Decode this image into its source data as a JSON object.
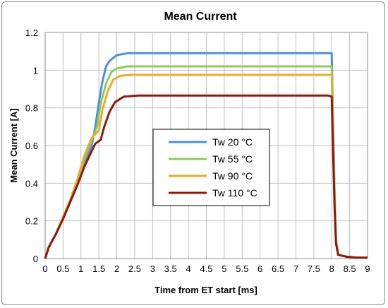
{
  "chart_data": {
    "type": "line",
    "title": "Mean Current",
    "xlabel": "Time from ET start [ms]",
    "ylabel": "Mean Current [A]",
    "xlim": [
      0,
      9
    ],
    "ylim": [
      0,
      1.2
    ],
    "x_ticks": [
      "0",
      "0.5",
      "1",
      "1.5",
      "2",
      "2.5",
      "3",
      "3.5",
      "4",
      "4.5",
      "5",
      "5.5",
      "6",
      "6.5",
      "7",
      "7.5",
      "8",
      "8.5",
      "9"
    ],
    "y_ticks": [
      "0",
      "0.2",
      "0.4",
      "0.6",
      "0.8",
      "1",
      "1.2"
    ],
    "grid": true,
    "legend_position": "center",
    "series": [
      {
        "name": "Tw 20 °C",
        "color": "#4a90e2",
        "points": [
          [
            0,
            0.0
          ],
          [
            0.1,
            0.06
          ],
          [
            0.3,
            0.13
          ],
          [
            0.5,
            0.22
          ],
          [
            0.7,
            0.31
          ],
          [
            0.9,
            0.41
          ],
          [
            1.1,
            0.51
          ],
          [
            1.3,
            0.6
          ],
          [
            1.4,
            0.7
          ],
          [
            1.5,
            0.83
          ],
          [
            1.6,
            0.94
          ],
          [
            1.7,
            1.02
          ],
          [
            1.8,
            1.05
          ],
          [
            2.0,
            1.08
          ],
          [
            2.3,
            1.09
          ],
          [
            3,
            1.09
          ],
          [
            4,
            1.09
          ],
          [
            5,
            1.09
          ],
          [
            6,
            1.09
          ],
          [
            7,
            1.09
          ],
          [
            8,
            1.09
          ],
          [
            8.02,
            0.9
          ],
          [
            8.08,
            0.35
          ],
          [
            8.12,
            0.1
          ],
          [
            8.18,
            0.02
          ],
          [
            8.4,
            0.01
          ],
          [
            8.7,
            0.005
          ],
          [
            9.0,
            0.005
          ]
        ]
      },
      {
        "name": "Tw 55 °C",
        "color": "#8fc95c",
        "points": [
          [
            0,
            0.0
          ],
          [
            0.1,
            0.06
          ],
          [
            0.3,
            0.13
          ],
          [
            0.5,
            0.22
          ],
          [
            0.7,
            0.31
          ],
          [
            0.9,
            0.41
          ],
          [
            1.1,
            0.53
          ],
          [
            1.3,
            0.63
          ],
          [
            1.45,
            0.7
          ],
          [
            1.55,
            0.82
          ],
          [
            1.7,
            0.93
          ],
          [
            1.85,
            0.99
          ],
          [
            2.0,
            1.01
          ],
          [
            2.3,
            1.02
          ],
          [
            3,
            1.02
          ],
          [
            4,
            1.02
          ],
          [
            5,
            1.02
          ],
          [
            6,
            1.02
          ],
          [
            7,
            1.02
          ],
          [
            8,
            1.02
          ],
          [
            8.02,
            0.85
          ],
          [
            8.08,
            0.33
          ],
          [
            8.12,
            0.1
          ],
          [
            8.18,
            0.02
          ],
          [
            8.4,
            0.01
          ],
          [
            8.7,
            0.005
          ],
          [
            9.0,
            0.005
          ]
        ]
      },
      {
        "name": "Tw 90 °C",
        "color": "#e8ac2a",
        "points": [
          [
            0,
            0.0
          ],
          [
            0.1,
            0.06
          ],
          [
            0.3,
            0.13
          ],
          [
            0.5,
            0.22
          ],
          [
            0.7,
            0.31
          ],
          [
            0.9,
            0.42
          ],
          [
            1.1,
            0.55
          ],
          [
            1.3,
            0.64
          ],
          [
            1.5,
            0.68
          ],
          [
            1.6,
            0.79
          ],
          [
            1.75,
            0.89
          ],
          [
            1.9,
            0.95
          ],
          [
            2.1,
            0.97
          ],
          [
            2.4,
            0.975
          ],
          [
            3,
            0.975
          ],
          [
            4,
            0.975
          ],
          [
            5,
            0.975
          ],
          [
            6,
            0.975
          ],
          [
            7,
            0.975
          ],
          [
            8,
            0.975
          ],
          [
            8.02,
            0.8
          ],
          [
            8.08,
            0.3
          ],
          [
            8.12,
            0.09
          ],
          [
            8.18,
            0.02
          ],
          [
            8.4,
            0.01
          ],
          [
            8.7,
            0.005
          ],
          [
            9.0,
            0.005
          ]
        ]
      },
      {
        "name": "Tw 110 °C",
        "color": "#8b1a0e",
        "points": [
          [
            0,
            0.0
          ],
          [
            0.1,
            0.06
          ],
          [
            0.3,
            0.13
          ],
          [
            0.5,
            0.21
          ],
          [
            0.7,
            0.3
          ],
          [
            0.9,
            0.39
          ],
          [
            1.1,
            0.49
          ],
          [
            1.3,
            0.57
          ],
          [
            1.4,
            0.61
          ],
          [
            1.55,
            0.63
          ],
          [
            1.65,
            0.7
          ],
          [
            1.8,
            0.78
          ],
          [
            1.95,
            0.83
          ],
          [
            2.2,
            0.86
          ],
          [
            2.6,
            0.865
          ],
          [
            3,
            0.865
          ],
          [
            4,
            0.865
          ],
          [
            5,
            0.865
          ],
          [
            6,
            0.865
          ],
          [
            7,
            0.865
          ],
          [
            7.9,
            0.865
          ],
          [
            8.0,
            0.86
          ],
          [
            8.02,
            0.7
          ],
          [
            8.08,
            0.27
          ],
          [
            8.12,
            0.08
          ],
          [
            8.18,
            0.02
          ],
          [
            8.4,
            0.01
          ],
          [
            8.7,
            0.005
          ],
          [
            9.0,
            0.005
          ]
        ]
      }
    ]
  }
}
